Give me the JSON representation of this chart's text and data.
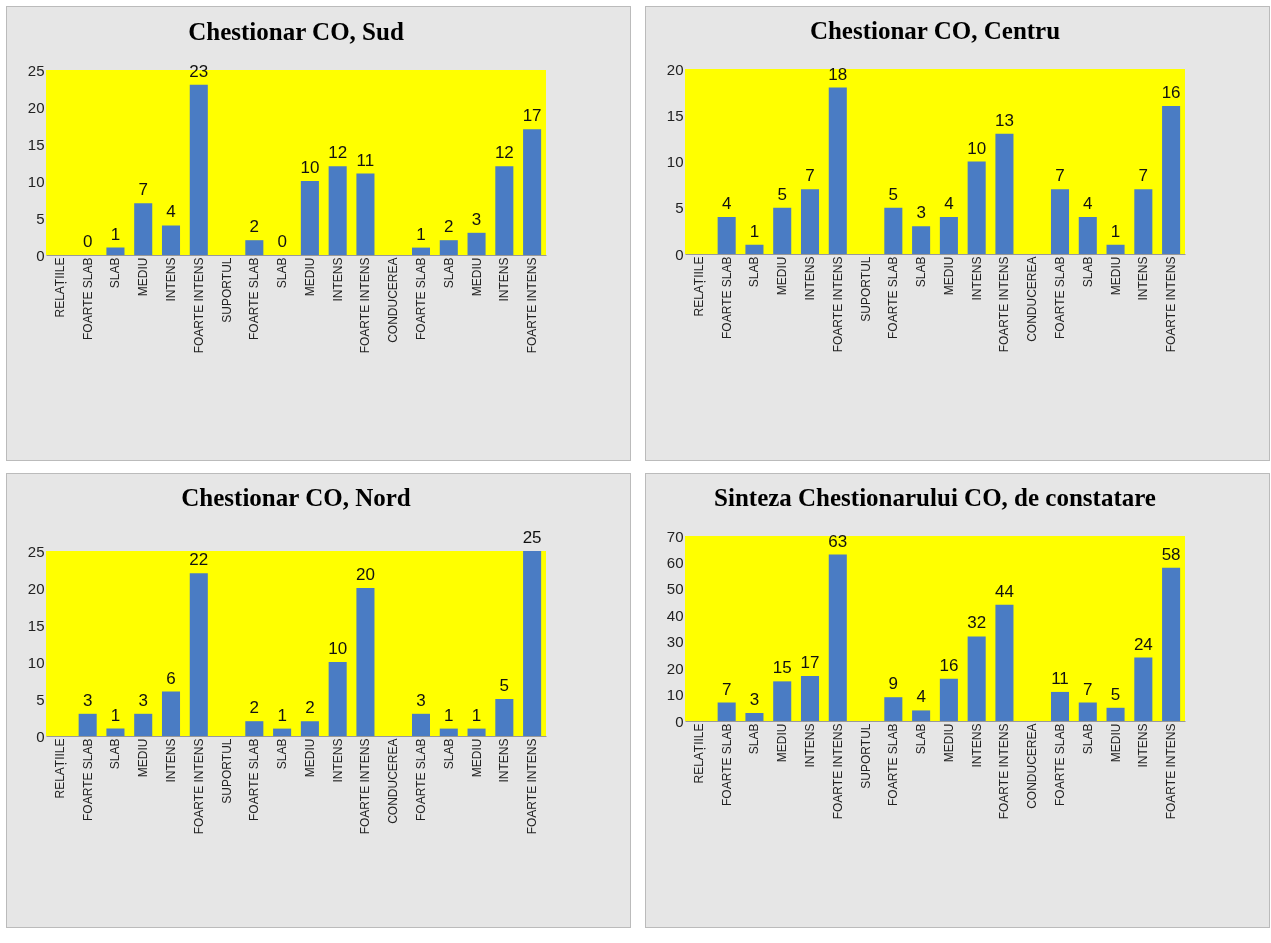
{
  "chart_data": [
    {
      "type": "bar",
      "title": "Chestionar CO, Sud",
      "categories": [
        "RELAȚIILE",
        "FOARTE SLAB",
        "SLAB",
        "MEDIU",
        "INTENS",
        "FOARTE INTENS",
        "SUPORTUL",
        "FOARTE SLAB",
        "SLAB",
        "MEDIU",
        "INTENS",
        "FOARTE INTENS",
        "CONDUCEREA",
        "FOARTE SLAB",
        "SLAB",
        "MEDIU",
        "INTENS",
        "FOARTE INTENS"
      ],
      "values": [
        null,
        0,
        1,
        7,
        4,
        23,
        null,
        2,
        0,
        10,
        12,
        11,
        null,
        1,
        2,
        3,
        12,
        17
      ],
      "color": "#4a7cc4",
      "ylim": [
        0,
        25
      ],
      "yticks": [
        0,
        5,
        10,
        15,
        20,
        25
      ],
      "data_labels": true
    },
    {
      "type": "bar",
      "title": "Chestionar CO, Centru",
      "categories": [
        "RELAȚIILE",
        "FOARTE SLAB",
        "SLAB",
        "MEDIU",
        "INTENS",
        "FOARTE INTENS",
        "SUPORTUL",
        "FOARTE SLAB",
        "SLAB",
        "MEDIU",
        "INTENS",
        "FOARTE INTENS",
        "CONDUCEREA",
        "FOARTE SLAB",
        "SLAB",
        "MEDIU",
        "INTENS",
        "FOARTE INTENS"
      ],
      "values": [
        null,
        4,
        1,
        5,
        7,
        18,
        null,
        5,
        3,
        4,
        10,
        13,
        null,
        7,
        4,
        1,
        7,
        16
      ],
      "color": "#4a7cc4",
      "ylim": [
        0,
        20
      ],
      "yticks": [
        0,
        5,
        10,
        15,
        20
      ],
      "data_labels": true
    },
    {
      "type": "bar",
      "title": "Chestionar CO, Nord",
      "categories": [
        "RELAȚIILE",
        "FOARTE SLAB",
        "SLAB",
        "MEDIU",
        "INTENS",
        "FOARTE INTENS",
        "SUPORTUL",
        "FOARTE SLAB",
        "SLAB",
        "MEDIU",
        "INTENS",
        "FOARTE INTENS",
        "CONDUCEREA",
        "FOARTE SLAB",
        "SLAB",
        "MEDIU",
        "INTENS",
        "FOARTE INTENS"
      ],
      "values": [
        null,
        3,
        1,
        3,
        6,
        22,
        null,
        2,
        1,
        2,
        10,
        20,
        null,
        3,
        1,
        1,
        5,
        25
      ],
      "color": "#4a7cc4",
      "ylim": [
        0,
        25
      ],
      "yticks": [
        0,
        5,
        10,
        15,
        20,
        25
      ],
      "data_labels": true
    },
    {
      "type": "bar",
      "title": "Sinteza Chestionarului CO, de constatare",
      "categories": [
        "RELAȚIILE",
        "FOARTE SLAB",
        "SLAB",
        "MEDIU",
        "INTENS",
        "FOARTE INTENS",
        "SUPORTUL",
        "FOARTE SLAB",
        "SLAB",
        "MEDIU",
        "INTENS",
        "FOARTE INTENS",
        "CONDUCEREA",
        "FOARTE SLAB",
        "SLAB",
        "MEDIU",
        "INTENS",
        "FOARTE INTENS"
      ],
      "values": [
        null,
        7,
        3,
        15,
        17,
        63,
        null,
        9,
        4,
        16,
        32,
        44,
        null,
        11,
        7,
        5,
        24,
        58
      ],
      "color": "#4a7cc4",
      "ylim": [
        0,
        70
      ],
      "yticks": [
        0,
        10,
        20,
        30,
        40,
        50,
        60,
        70
      ],
      "data_labels": true
    }
  ]
}
